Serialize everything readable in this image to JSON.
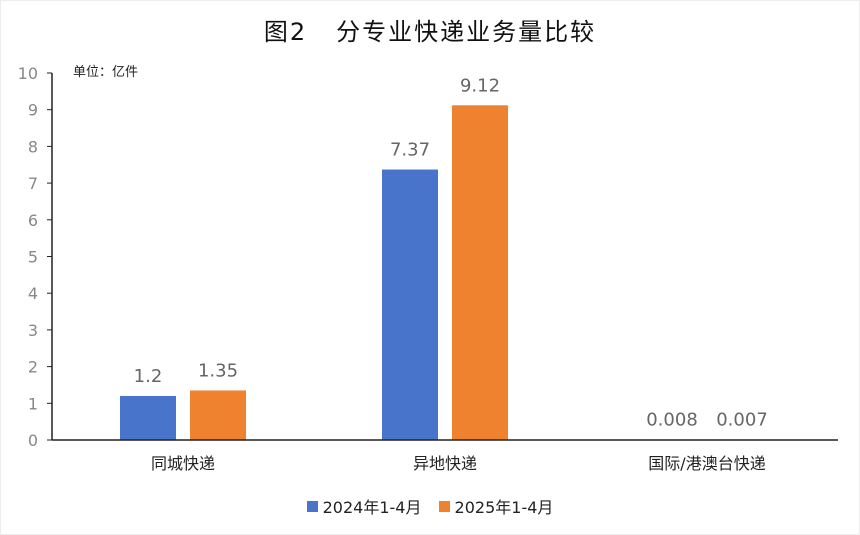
{
  "title": "图2   分专业快递业务量比较",
  "unit_label": "单位：亿件",
  "colors": {
    "series_1": "#4874CB",
    "series_2": "#EE822F",
    "axis": "#222222",
    "tick": "#888888"
  },
  "chart_data": {
    "type": "bar",
    "categories": [
      "同城快递",
      "异地快递",
      "国际/港澳台快递"
    ],
    "series": [
      {
        "name": "2024年1-4月",
        "values": [
          1.2,
          7.37,
          0.008
        ],
        "labels": [
          "1.2",
          "7.37",
          "0.008"
        ]
      },
      {
        "name": "2025年1-4月",
        "values": [
          1.35,
          9.12,
          0.007
        ],
        "labels": [
          "1.35",
          "9.12",
          "0.007"
        ]
      }
    ],
    "ylim": [
      0,
      10
    ],
    "yticks": [
      0,
      1,
      2,
      3,
      4,
      5,
      6,
      7,
      8,
      9,
      10
    ],
    "grid": false,
    "legend_position": "bottom"
  }
}
